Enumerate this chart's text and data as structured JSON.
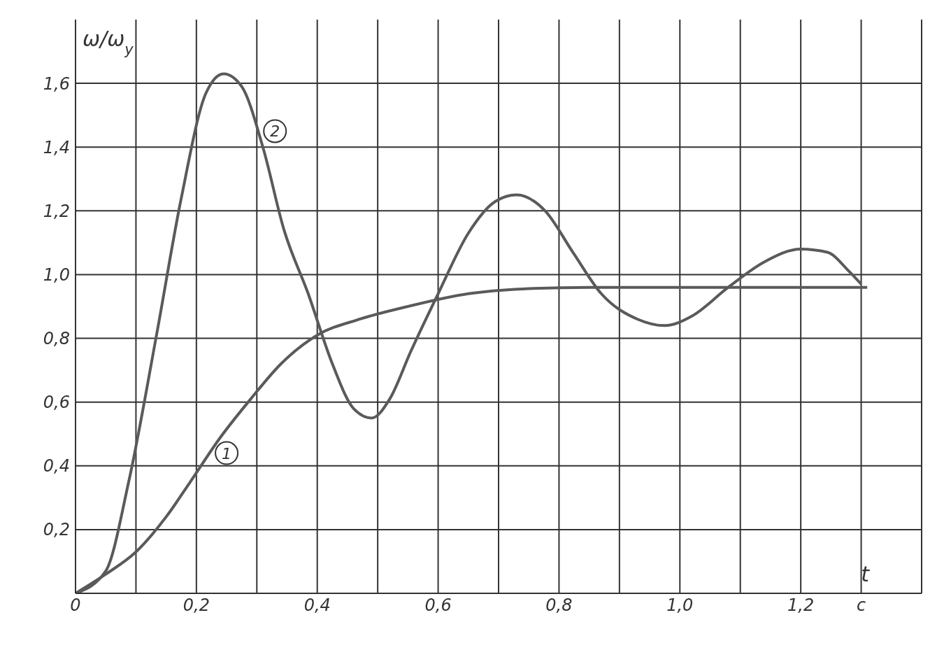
{
  "chart_data": {
    "type": "line",
    "xlabel": "t",
    "ylabel": "ω/ω$_{y}$",
    "xlim": [
      0,
      1.4
    ],
    "ylim": [
      0,
      1.8
    ],
    "xticks": [
      {
        "value": 0,
        "label": "0"
      },
      {
        "value": 0.1,
        "label": null
      },
      {
        "value": 0.2,
        "label": "0,2"
      },
      {
        "value": 0.3,
        "label": null
      },
      {
        "value": 0.4,
        "label": "0,4"
      },
      {
        "value": 0.5,
        "label": null
      },
      {
        "value": 0.6,
        "label": "0,6"
      },
      {
        "value": 0.7,
        "label": null
      },
      {
        "value": 0.8,
        "label": "0,8"
      },
      {
        "value": 0.9,
        "label": null
      },
      {
        "value": 1.0,
        "label": "1,0"
      },
      {
        "value": 1.1,
        "label": null
      },
      {
        "value": 1.2,
        "label": "1,2"
      },
      {
        "value": 1.3,
        "label": "c"
      },
      {
        "value": 1.4,
        "label": null
      }
    ],
    "yticks": [
      {
        "value": 0.2,
        "label": "0,2"
      },
      {
        "value": 0.4,
        "label": "0,4"
      },
      {
        "value": 0.6,
        "label": "0,6"
      },
      {
        "value": 0.8,
        "label": "0,8"
      },
      {
        "value": 1.0,
        "label": "1,0"
      },
      {
        "value": 1.2,
        "label": "1,2"
      },
      {
        "value": 1.4,
        "label": "1,4"
      },
      {
        "value": 1.6,
        "label": "1,6"
      }
    ],
    "grid": true,
    "marker": "none",
    "line_style": "solid",
    "series": [
      {
        "color": "#5a5a5a",
        "x": [
          0,
          0.05,
          0.1,
          0.15,
          0.19,
          0.24,
          0.29,
          0.34,
          0.4,
          0.47,
          0.55,
          0.65,
          0.74,
          0.85,
          1.02,
          1.31
        ],
        "values": [
          0,
          0.06,
          0.13,
          0.24,
          0.35,
          0.49,
          0.61,
          0.72,
          0.81,
          0.86,
          0.9,
          0.94,
          0.955,
          0.96,
          0.96,
          0.96
        ]
      },
      {
        "color": "#5a5a5a",
        "x": [
          0,
          0.05,
          0.088,
          0.134,
          0.175,
          0.216,
          0.245,
          0.275,
          0.31,
          0.345,
          0.385,
          0.425,
          0.46,
          0.49,
          0.52,
          0.555,
          0.6,
          0.65,
          0.695,
          0.73,
          0.777,
          0.823,
          0.87,
          0.93,
          0.975,
          1.02,
          1.08,
          1.14,
          1.2,
          1.244,
          1.28,
          1.3
        ],
        "values": [
          0,
          0.07,
          0.35,
          0.81,
          1.24,
          1.57,
          1.63,
          1.59,
          1.4,
          1.14,
          0.94,
          0.72,
          0.58,
          0.55,
          0.61,
          0.76,
          0.94,
          1.13,
          1.23,
          1.25,
          1.2,
          1.07,
          0.94,
          0.86,
          0.84,
          0.87,
          0.96,
          1.04,
          1.08,
          1.07,
          1.01,
          0.97
        ]
      }
    ],
    "annotations": [
      {
        "text": "1",
        "x": 0.25,
        "y": 0.44
      },
      {
        "text": "2",
        "x": 0.33,
        "y": 1.45
      }
    ]
  }
}
